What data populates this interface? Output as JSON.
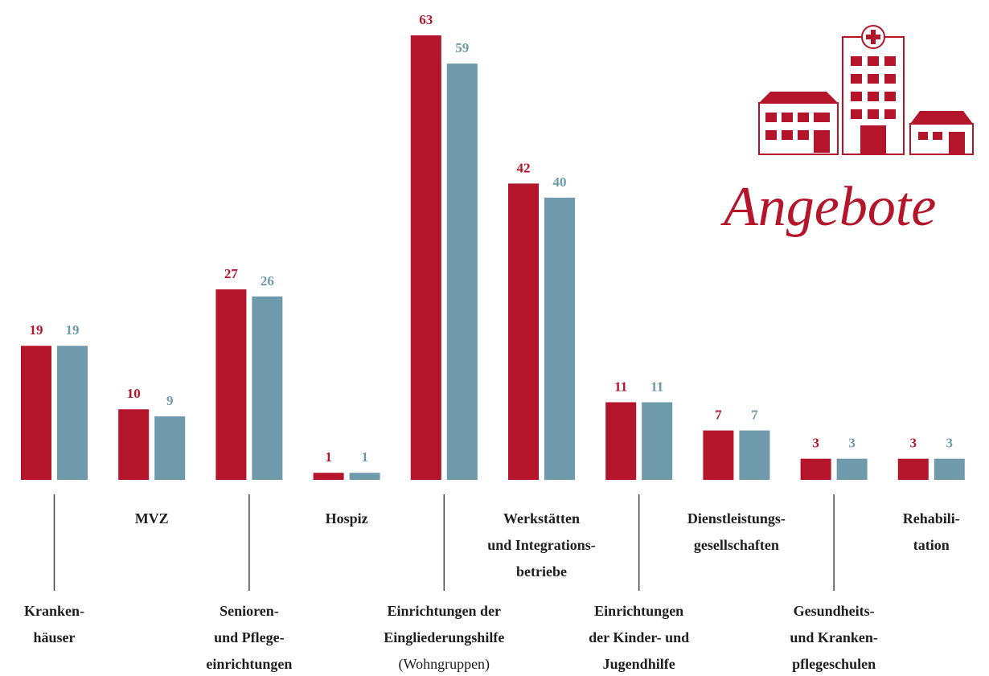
{
  "chart_data": {
    "type": "bar",
    "title": "Angebote",
    "categories": [
      [
        "Kranken-",
        "häuser"
      ],
      [
        "MVZ"
      ],
      [
        "Senioren-",
        "und Pflege-",
        "einrichtungen"
      ],
      [
        "Hospiz"
      ],
      [
        "Einrichtungen der",
        "Eingliederungshilfe",
        "(Wohngruppen)"
      ],
      [
        "Werkstätten",
        "und Integrations-",
        "betriebe"
      ],
      [
        "Einrichtungen",
        "der Kinder- und",
        "Jugendhilfe"
      ],
      [
        "Dienstleistungs-",
        "gesellschaften"
      ],
      [
        "Gesundheits-",
        "und Kranken-",
        "pflegeschulen"
      ],
      [
        "Rehabili-",
        "tation"
      ]
    ],
    "series": [
      {
        "color": "#b5152b",
        "values": [
          19,
          10,
          27,
          1,
          63,
          42,
          11,
          7,
          3,
          3
        ]
      },
      {
        "color": "#6f9aab",
        "values": [
          19,
          9,
          26,
          1,
          59,
          40,
          11,
          7,
          3,
          3
        ]
      }
    ]
  }
}
